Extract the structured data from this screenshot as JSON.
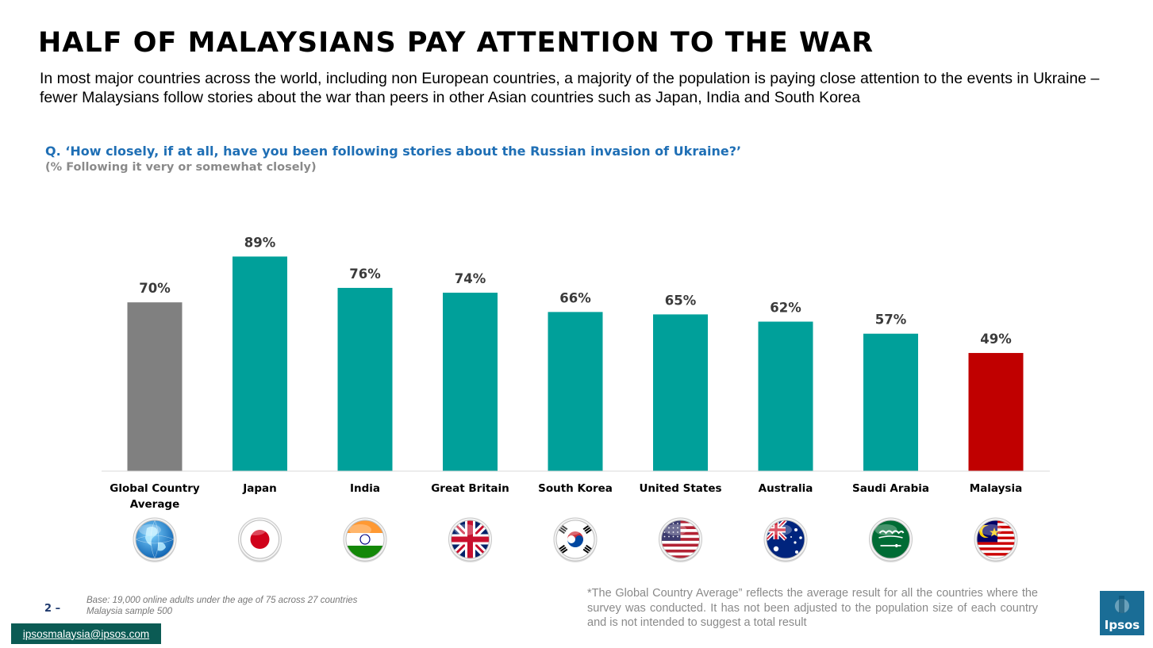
{
  "title": "HALF OF MALAYSIANS PAY ATTENTION TO THE WAR",
  "subtitle": "In most major countries across the world, including non European countries, a majority of the population is paying close attention to the events in Ukraine – fewer Malaysians follow stories about the war than peers in other Asian countries such as Japan, India and South Korea",
  "question": "Q. ‘How closely, if at all, have you been following stories about the Russian invasion of Ukraine?’",
  "question_note": "(% Following it very or somewhat closely)",
  "colors": {
    "global": "#808080",
    "country": "#00a09a",
    "malaysia": "#c00000",
    "question": "#1f6fb5"
  },
  "chart_data": {
    "type": "bar",
    "categories": [
      "Global Country Average",
      "Japan",
      "India",
      "Great Britain",
      "South Korea",
      "United States",
      "Australia",
      "Saudi Arabia",
      "Malaysia"
    ],
    "values": [
      70,
      89,
      76,
      74,
      66,
      65,
      62,
      57,
      49
    ],
    "value_labels": [
      "70%",
      "89%",
      "76%",
      "74%",
      "66%",
      "65%",
      "62%",
      "57%",
      "49%"
    ],
    "bar_colors": [
      "#808080",
      "#00a09a",
      "#00a09a",
      "#00a09a",
      "#00a09a",
      "#00a09a",
      "#00a09a",
      "#00a09a",
      "#c00000"
    ],
    "icons": [
      "globe-icon",
      "japan-flag-icon",
      "india-flag-icon",
      "great-britain-flag-icon",
      "south-korea-flag-icon",
      "united-states-flag-icon",
      "australia-flag-icon",
      "saudi-arabia-flag-icon",
      "malaysia-flag-icon"
    ],
    "ylim": [
      0,
      100
    ],
    "grid": false,
    "legend": "none"
  },
  "footer": {
    "page_number": "2 –",
    "base_line1": "Base: 19,000 online adults under the age of 75 across 27 countries",
    "base_line2": "Malaysia sample 500",
    "footnote": "*The Global Country Average” reflects the average result for all the countries where the survey was conducted. It has not been adjusted to the population size of each country and is not intended to suggest a total result",
    "email": "ipsosmalaysia@ipsos.com",
    "logo_text": "Ipsos"
  }
}
